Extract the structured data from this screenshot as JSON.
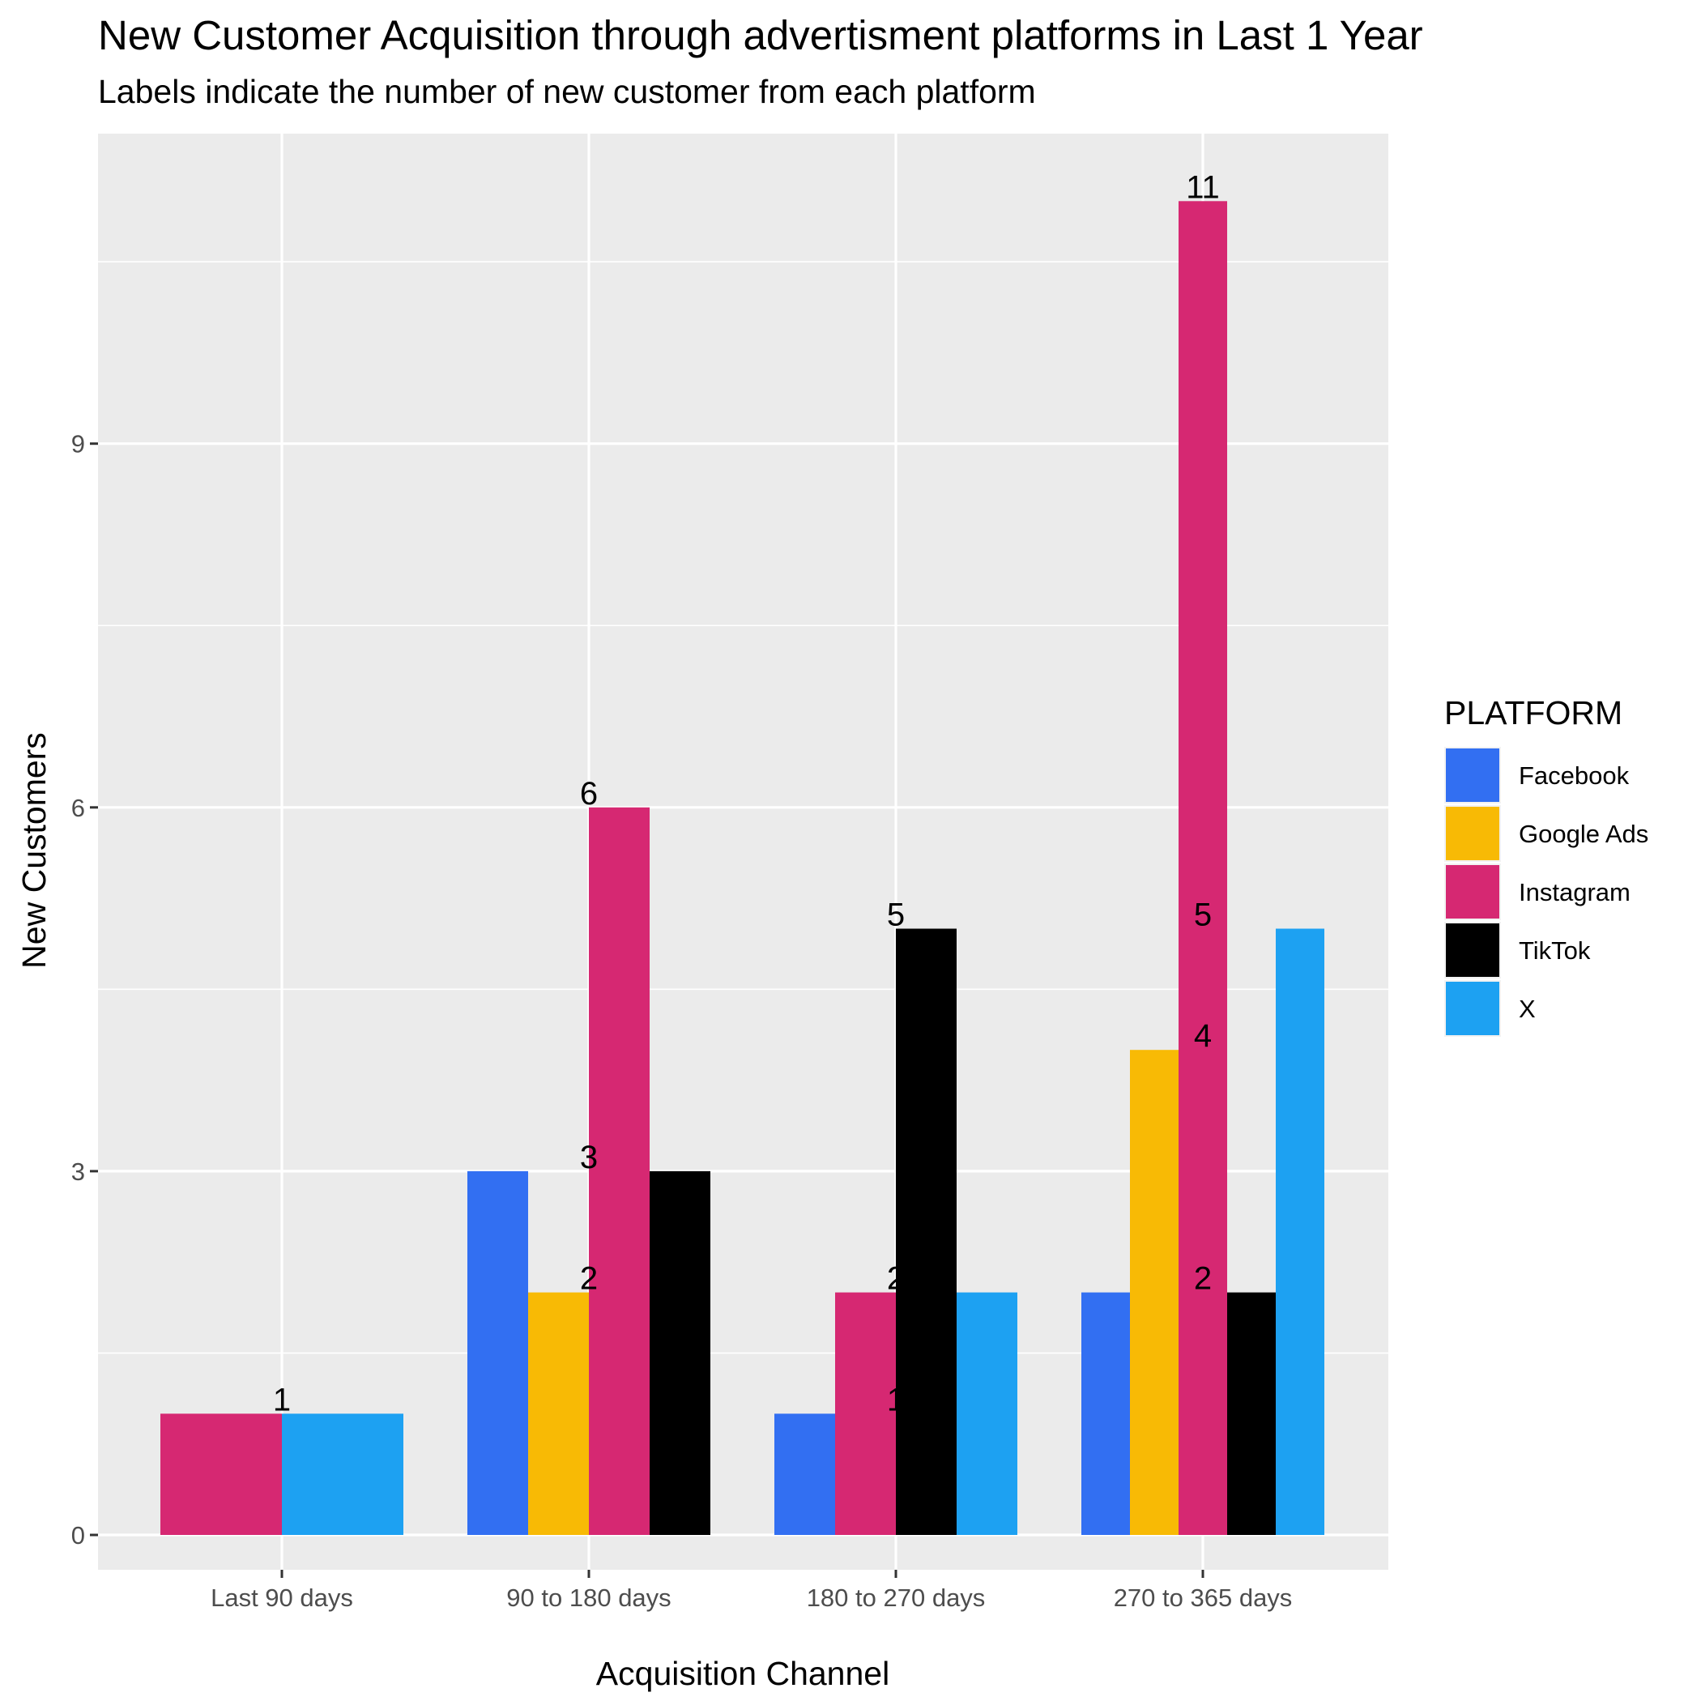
{
  "chart_data": {
    "type": "bar",
    "title": "New Customer Acquisition through advertisment platforms in Last 1 Year",
    "subtitle": "Labels indicate the number of new customer from each platform",
    "xlabel": "Acquisition Channel",
    "ylabel": "New Customers",
    "categories": [
      "Last 90 days",
      "90 to 180 days",
      "180 to 270 days",
      "270 to 365 days"
    ],
    "ylim": [
      -0.55,
      11.55
    ],
    "yticks": [
      0,
      3,
      6,
      9
    ],
    "grid": true,
    "legend_title": "PLATFORM",
    "legend_position": "right",
    "series": [
      {
        "name": "Facebook",
        "color": "#326ff2",
        "values": [
          null,
          3,
          1,
          2
        ]
      },
      {
        "name": "Google Ads",
        "color": "#f8ba05",
        "values": [
          null,
          2,
          null,
          4
        ]
      },
      {
        "name": "Instagram",
        "color": "#d62872",
        "values": [
          1,
          6,
          2,
          11
        ]
      },
      {
        "name": "TikTok",
        "color": "#000000",
        "values": [
          null,
          3,
          5,
          2
        ]
      },
      {
        "name": "X",
        "color": "#1da1f2",
        "values": [
          1,
          null,
          2,
          5
        ]
      }
    ],
    "data_labels": [
      {
        "category": "Last 90 days",
        "text": "1",
        "value": 1
      },
      {
        "category": "90 to 180 days",
        "text": "6",
        "value": 6
      },
      {
        "category": "90 to 180 days",
        "text": "3",
        "value": 3
      },
      {
        "category": "90 to 180 days",
        "text": "2",
        "value": 2
      },
      {
        "category": "180 to 270 days",
        "text": "5",
        "value": 5
      },
      {
        "category": "180 to 270 days",
        "text": "2",
        "value": 2
      },
      {
        "category": "180 to 270 days",
        "text": "1",
        "value": 1
      },
      {
        "category": "270 to 365 days",
        "text": "11",
        "value": 11
      },
      {
        "category": "270 to 365 days",
        "text": "5",
        "value": 5
      },
      {
        "category": "270 to 365 days",
        "text": "4",
        "value": 4
      },
      {
        "category": "270 to 365 days",
        "text": "2",
        "value": 2
      }
    ],
    "colors": {
      "panel_background": "#ebebeb",
      "grid": "#ffffff",
      "tick_text": "#4d4d4d"
    }
  }
}
